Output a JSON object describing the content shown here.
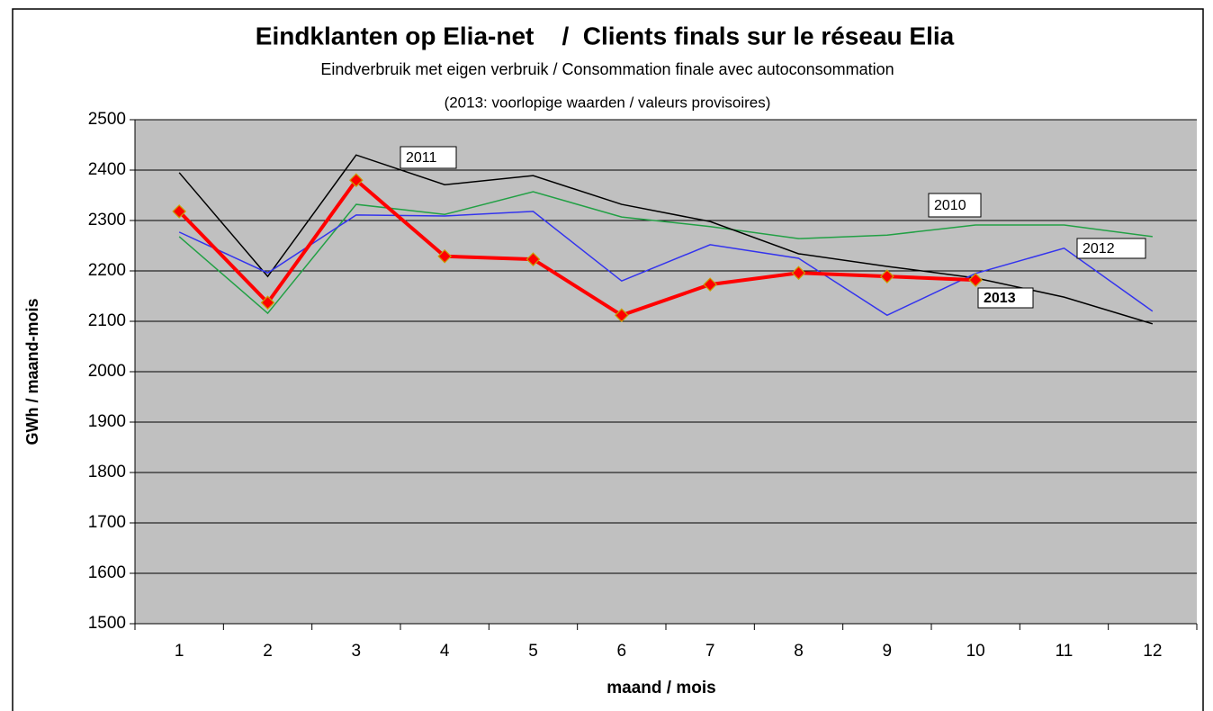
{
  "chart_data": {
    "type": "line",
    "title": "Eindklanten op Elia-net    /  Clients finals sur le réseau Elia",
    "subtitle": "Eindverbruik met eigen verbruik / Consommation finale avec autoconsommation",
    "note": "(2013: voorlopige waarden / valeurs provisoires)",
    "x_label": "maand / mois",
    "y_label": "GWh / maand-mois",
    "x": [
      1,
      2,
      3,
      4,
      5,
      6,
      7,
      8,
      9,
      10,
      11,
      12
    ],
    "xlim": [
      0.5,
      12.5
    ],
    "xticks": [
      1,
      2,
      3,
      4,
      5,
      6,
      7,
      8,
      9,
      10,
      11,
      12
    ],
    "ylim": [
      1500,
      2500
    ],
    "yticks": [
      1500,
      1600,
      1700,
      1800,
      1900,
      2000,
      2100,
      2200,
      2300,
      2400,
      2500
    ],
    "grid": true,
    "series": [
      {
        "name": "2010",
        "color": "#22a045",
        "values": [
          2268,
          2116,
          2332,
          2312,
          2357,
          2307,
          2288,
          2264,
          2271,
          2291,
          2291,
          2268
        ]
      },
      {
        "name": "2011",
        "color": "#000000",
        "values": [
          2395,
          2189,
          2430,
          2371,
          2389,
          2332,
          2298,
          2234,
          2209,
          2186,
          2148,
          2095
        ]
      },
      {
        "name": "2012",
        "color": "#3333ee",
        "values": [
          2277,
          2196,
          2311,
          2309,
          2318,
          2180,
          2252,
          2225,
          2112,
          2195,
          2245,
          2120
        ]
      },
      {
        "name": "2013",
        "color": "#ff0000",
        "values": [
          2318,
          2137,
          2380,
          2229,
          2223,
          2112,
          2173,
          2196,
          2189,
          2182,
          null,
          null
        ]
      }
    ]
  }
}
